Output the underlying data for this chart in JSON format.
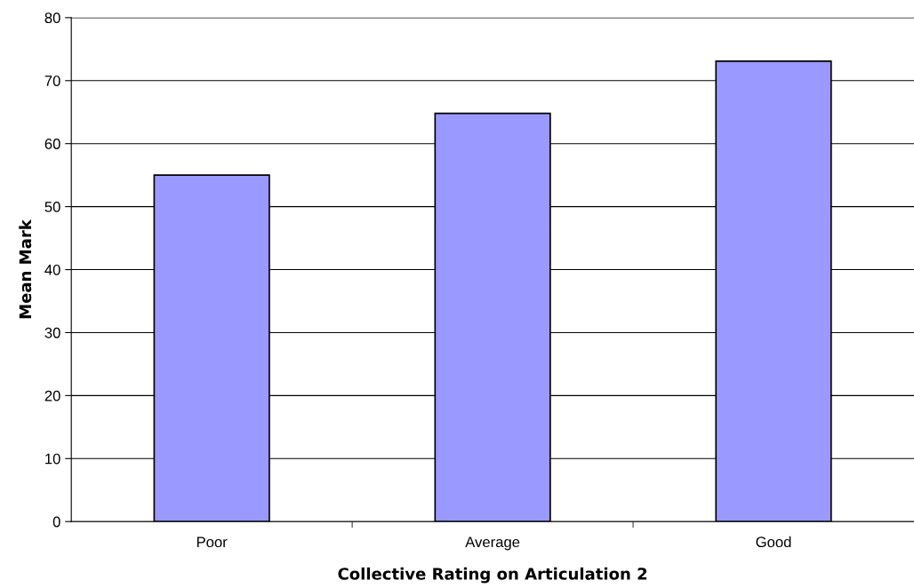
{
  "chart_data": {
    "type": "bar",
    "xlabel": "Collective Rating on Articulation 2",
    "ylabel": "Mean Mark",
    "categories": [
      "Poor",
      "Average",
      "Good"
    ],
    "values": [
      55.0,
      64.8,
      73.1
    ],
    "color": "#9999ff",
    "ylim": [
      0,
      80
    ],
    "yticks": [
      0,
      10,
      20,
      30,
      40,
      50,
      60,
      70,
      80
    ],
    "grid": "y",
    "legend": false
  }
}
